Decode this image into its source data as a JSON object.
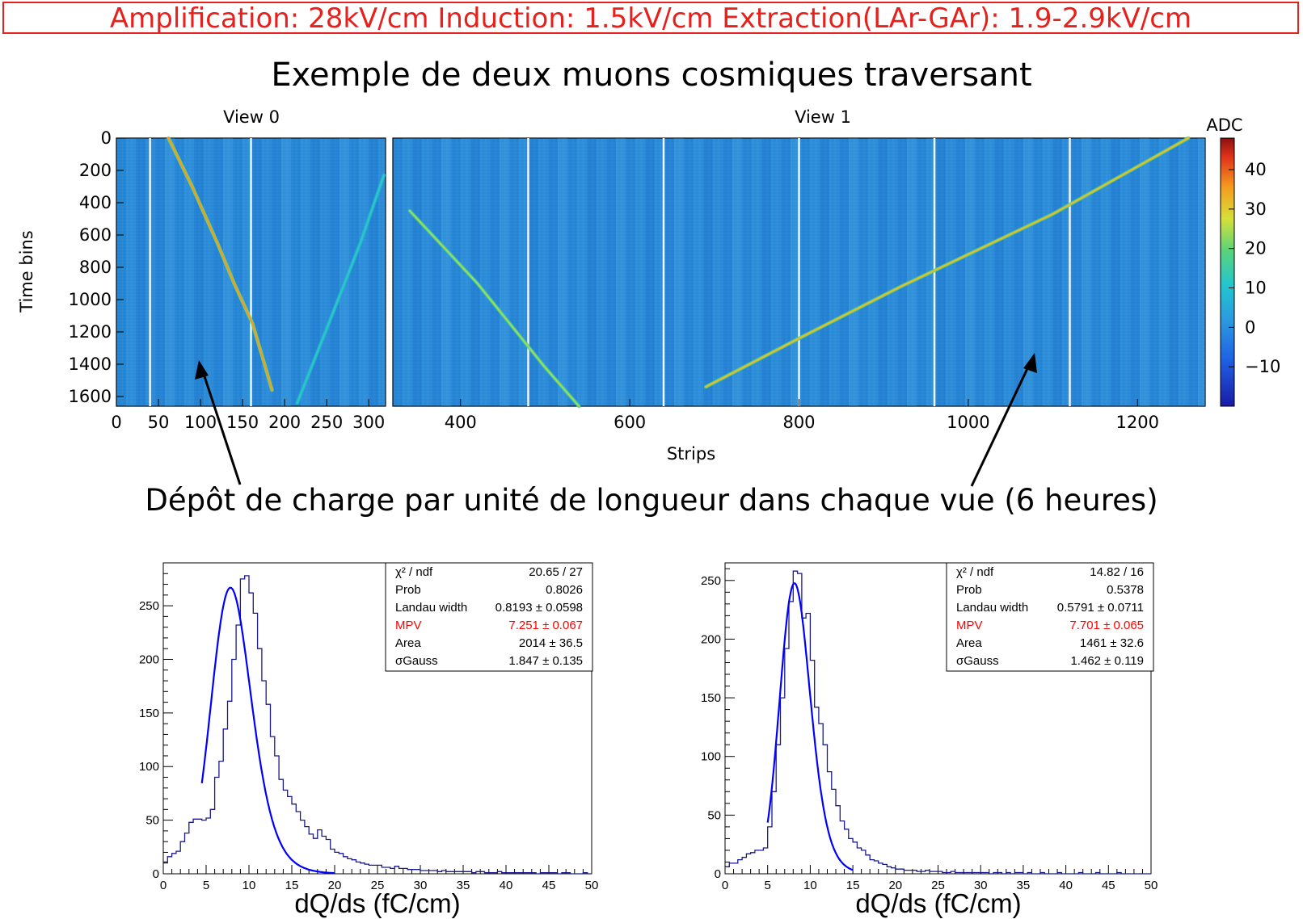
{
  "banner": "Amplification: 28kV/cm  Induction: 1.5kV/cm  Extraction(LAr-GAr): 1.9-2.9kV/cm",
  "header_title": "Exemple de deux muons cosmiques traversant",
  "section_title": "Dépôt de charge par unité de longueur dans chaque vue (6 heures)",
  "colors": {
    "banner": "#e8201c",
    "histogram": "#1a1a8c",
    "fit": "#0000ff",
    "heatmap_bg": "#2a8ad8",
    "mpv": "#ff0000"
  },
  "chart_data": [
    {
      "type": "heatmap",
      "title": "View 0",
      "ylabel": "Time bins",
      "xlim": [
        0,
        320
      ],
      "ylim": [
        1660,
        0
      ],
      "x_ticks": [
        0,
        50,
        100,
        150,
        200,
        250,
        300
      ],
      "y_ticks": [
        0,
        200,
        400,
        600,
        800,
        1000,
        1200,
        1400,
        1600
      ],
      "tracks": [
        {
          "x": [
            62,
            90,
            120,
            140,
            162,
            175,
            185
          ],
          "y": [
            0,
            300,
            650,
            900,
            1150,
            1380,
            1560
          ],
          "max_adc": 45
        },
        {
          "x": [
            215,
            250,
            290,
            318
          ],
          "y": [
            1640,
            1180,
            650,
            230
          ],
          "max_adc": 15
        }
      ]
    },
    {
      "type": "heatmap",
      "title": "View 1",
      "xlabel": "Strips",
      "xlim": [
        320,
        1280
      ],
      "ylim": [
        1660,
        0
      ],
      "x_ticks": [
        400,
        600,
        800,
        1000,
        1200
      ],
      "tracks": [
        {
          "x": [
            340,
            420,
            500,
            540
          ],
          "y": [
            450,
            900,
            1420,
            1660
          ],
          "max_adc": 30
        },
        {
          "x": [
            690,
            800,
            920,
            1000,
            1100,
            1260
          ],
          "y": [
            1540,
            1240,
            920,
            720,
            470,
            0
          ],
          "max_adc": 40
        }
      ]
    },
    {
      "type": "colorbar",
      "label": "ADC",
      "range": [
        -20,
        48
      ],
      "ticks": [
        -10,
        0,
        10,
        20,
        30,
        40
      ],
      "tick_labels": [
        "−10",
        "0",
        "10",
        "20",
        "30",
        "40"
      ]
    },
    {
      "type": "histogram",
      "xlabel": "dQ/ds (fC/cm)",
      "xlim": [
        0,
        50
      ],
      "ylim": [
        0,
        290
      ],
      "x_ticks": [
        0,
        5,
        10,
        15,
        20,
        25,
        30,
        35,
        40,
        45,
        50
      ],
      "y_ticks": [
        0,
        50,
        100,
        150,
        200,
        250
      ],
      "bin_width": 0.5,
      "counts": [
        11,
        16,
        19,
        21,
        30,
        38,
        48,
        51,
        51,
        50,
        52,
        60,
        90,
        105,
        135,
        161,
        200,
        232,
        275,
        278,
        262,
        243,
        210,
        180,
        158,
        128,
        110,
        88,
        78,
        72,
        65,
        58,
        50,
        44,
        37,
        33,
        41,
        35,
        32,
        23,
        20,
        19,
        16,
        14,
        13,
        11,
        10,
        9,
        8,
        8,
        8,
        6,
        6,
        5,
        7,
        5,
        5,
        4,
        4,
        4,
        3,
        3,
        3,
        3,
        2,
        3,
        2,
        2,
        2,
        2,
        2,
        2,
        1,
        2,
        2,
        1,
        1,
        1,
        2,
        1,
        1,
        1,
        1,
        1,
        1,
        1,
        1,
        0,
        1,
        1,
        1,
        1,
        0,
        1,
        1,
        0,
        0,
        0,
        1,
        0
      ],
      "fit": {
        "mpv": 7.251,
        "width": 0.8193,
        "sigma": 1.847,
        "area": 2014,
        "xmin": 4.5,
        "xmax": 20
      },
      "stats": [
        {
          "label": "χ² / ndf",
          "value": "20.65 / 27"
        },
        {
          "label": "Prob",
          "value": "0.8026"
        },
        {
          "label": "Landau width",
          "value": "0.8193 ± 0.0598"
        },
        {
          "label": "MPV",
          "value": "7.251 ± 0.067"
        },
        {
          "label": "Area",
          "value": "2014 ± 36.5"
        },
        {
          "label": "σGauss",
          "value": "1.847 ± 0.135"
        }
      ]
    },
    {
      "type": "histogram",
      "xlabel": "dQ/ds (fC/cm)",
      "xlim": [
        0,
        50
      ],
      "ylim": [
        0,
        265
      ],
      "x_ticks": [
        0,
        5,
        10,
        15,
        20,
        25,
        30,
        35,
        40,
        45,
        50
      ],
      "y_ticks": [
        0,
        50,
        100,
        150,
        200,
        250
      ],
      "bin_width": 0.5,
      "counts": [
        6,
        9,
        9,
        12,
        14,
        17,
        18,
        20,
        20,
        22,
        40,
        70,
        110,
        150,
        192,
        232,
        258,
        256,
        218,
        222,
        182,
        142,
        128,
        110,
        87,
        72,
        58,
        45,
        38,
        30,
        27,
        22,
        20,
        16,
        12,
        11,
        9,
        8,
        6,
        5,
        4,
        4,
        3,
        3,
        3,
        2,
        2,
        3,
        2,
        2,
        2,
        1,
        1,
        2,
        1,
        1,
        1,
        1,
        1,
        1,
        1,
        1,
        0,
        1,
        1,
        0,
        1,
        0,
        1,
        1,
        0,
        1,
        0,
        0,
        1,
        0,
        0,
        0,
        1,
        0,
        0,
        0,
        0,
        1,
        0,
        0,
        0,
        1,
        0,
        0,
        0,
        0,
        1,
        0,
        0,
        0,
        0,
        0,
        0,
        0
      ],
      "fit": {
        "mpv": 7.701,
        "width": 0.5791,
        "sigma": 1.462,
        "area": 1461,
        "xmin": 5,
        "xmax": 15
      },
      "stats": [
        {
          "label": "χ² / ndf",
          "value": "14.82 / 16"
        },
        {
          "label": "Prob",
          "value": "0.5378"
        },
        {
          "label": "Landau width",
          "value": "0.5791 ± 0.0711"
        },
        {
          "label": "MPV",
          "value": "7.701 ± 0.065"
        },
        {
          "label": "Area",
          "value": "1461 ± 32.6"
        },
        {
          "label": "σGauss",
          "value": "1.462 ± 0.119"
        }
      ]
    }
  ]
}
